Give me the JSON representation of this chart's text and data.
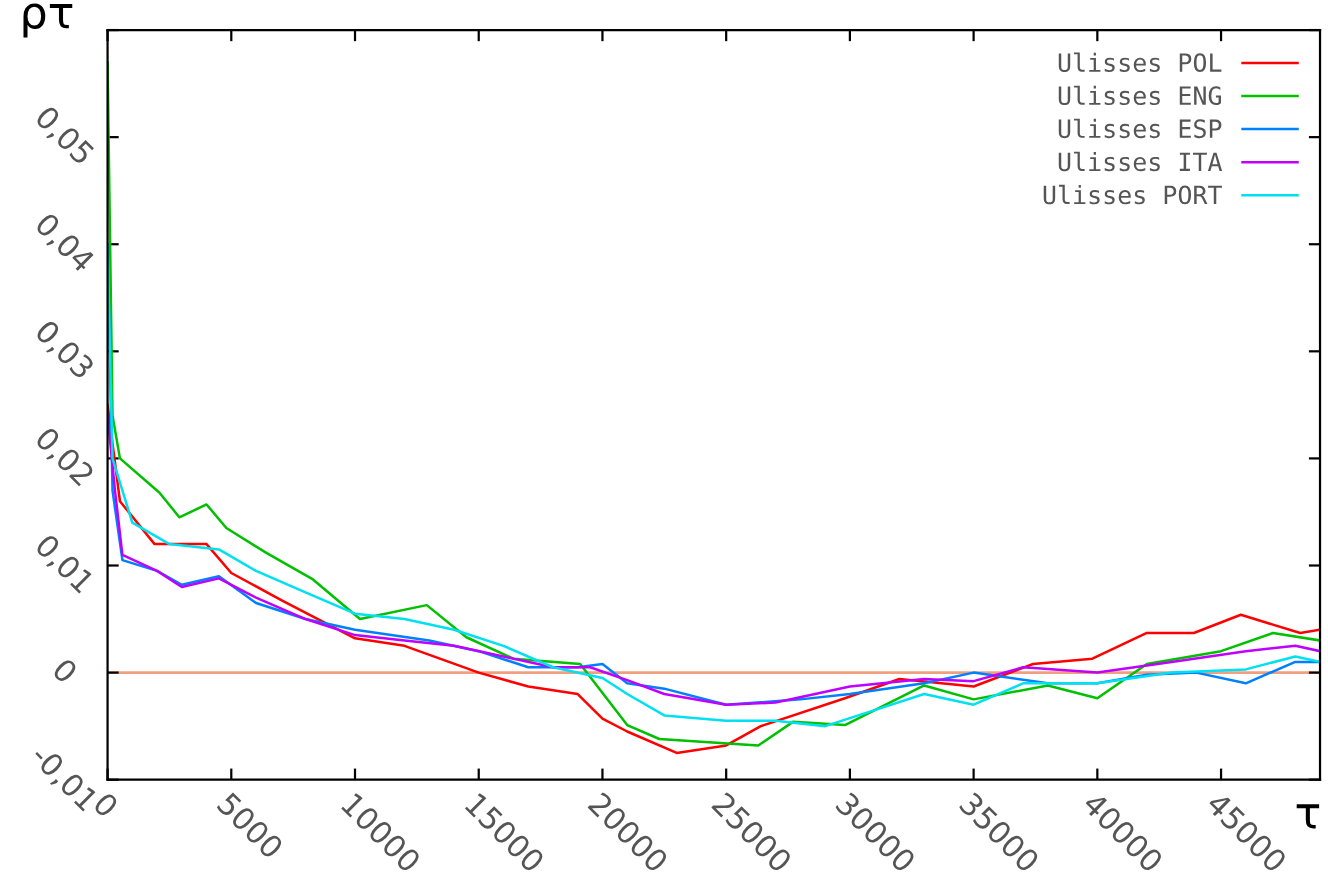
{
  "chart_data": {
    "type": "line",
    "xlabel": "τ",
    "ylabel": "ρτ",
    "xlim": [
      0,
      49000
    ],
    "xticks": [
      0,
      5000,
      10000,
      15000,
      20000,
      25000,
      30000,
      35000,
      40000,
      45000
    ],
    "ylim": [
      -0.01,
      0.06
    ],
    "yticks": [
      {
        "value": -0.01,
        "label": "-0,01"
      },
      {
        "value": 0,
        "label": "0"
      },
      {
        "value": 0.01,
        "label": "0,01"
      },
      {
        "value": 0.02,
        "label": "0,02"
      },
      {
        "value": 0.03,
        "label": "0,03"
      },
      {
        "value": 0.04,
        "label": "0,04"
      },
      {
        "value": 0.05,
        "label": "0,05"
      },
      {
        "value": 0.06,
        "label": null
      }
    ],
    "grid": false,
    "legend": "top right",
    "marker": "none",
    "line_style": "solid",
    "ref_lines": [
      {
        "axis": "y",
        "value": 0,
        "label": null,
        "color": "#f0a080"
      }
    ],
    "series": [
      {
        "name": "Ulisses POL",
        "color": "#ff0000",
        "x": [
          0,
          500,
          1900,
          4000,
          5000,
          7000,
          10000,
          12000,
          15000,
          17000,
          19000,
          20000,
          21000,
          23000,
          25000,
          26400,
          29800,
          32000,
          35000,
          37400,
          39800,
          42000,
          43900,
          45800,
          48200,
          49000
        ],
        "values": [
          0.025,
          0.016,
          0.012,
          0.012,
          0.0093,
          0.0068,
          0.0032,
          0.0025,
          0.0,
          -0.0013,
          -0.002,
          -0.0043,
          -0.0055,
          -0.0075,
          -0.0068,
          -0.005,
          -0.0024,
          -0.0006,
          -0.0013,
          0.0008,
          0.0013,
          0.0037,
          0.0037,
          0.0054,
          0.0037,
          0.004
        ]
      },
      {
        "name": "Ulisses ENG",
        "color": "#00c000",
        "x": [
          0,
          200,
          500,
          2100,
          2900,
          4000,
          4800,
          6400,
          8300,
          10200,
          12900,
          14500,
          16400,
          19100,
          21000,
          22300,
          26300,
          27700,
          29800,
          33000,
          35000,
          38000,
          40000,
          42000,
          45000,
          47100,
          49000
        ],
        "values": [
          0.057,
          0.024,
          0.02,
          0.0168,
          0.0145,
          0.0157,
          0.0135,
          0.0112,
          0.0087,
          0.005,
          0.0063,
          0.0033,
          0.0013,
          0.0008,
          -0.0049,
          -0.0062,
          -0.0068,
          -0.0046,
          -0.0049,
          -0.0012,
          -0.0025,
          -0.0012,
          -0.0024,
          0.0008,
          0.002,
          0.0037,
          0.003
        ]
      },
      {
        "name": "Ulisses ESP",
        "color": "#0080ff",
        "x": [
          0,
          200,
          600,
          2000,
          3000,
          4500,
          6000,
          8000,
          10000,
          13000,
          15000,
          17000,
          19000,
          20000,
          21000,
          22500,
          25000,
          28000,
          30000,
          33000,
          35000,
          38000,
          40000,
          42000,
          44000,
          46000,
          48000,
          49000
        ],
        "values": [
          0.04,
          0.017,
          0.0105,
          0.0095,
          0.0082,
          0.009,
          0.0065,
          0.005,
          0.004,
          0.003,
          0.002,
          0.0005,
          0.0005,
          0.0008,
          -0.001,
          -0.0015,
          -0.003,
          -0.0025,
          -0.002,
          -0.001,
          0.0,
          -0.001,
          -0.001,
          -0.0002,
          0.0,
          -0.001,
          0.001,
          0.001
        ]
      },
      {
        "name": "Ulisses ITA",
        "color": "#c000ff",
        "x": [
          0,
          300,
          600,
          2000,
          3000,
          4500,
          6000,
          8000,
          10000,
          12000,
          14000,
          16000,
          18000,
          19500,
          21000,
          22500,
          25000,
          27000,
          30000,
          33000,
          35000,
          37000,
          40000,
          43000,
          46000,
          48000,
          49000
        ],
        "values": [
          0.024,
          0.017,
          0.011,
          0.0095,
          0.008,
          0.0088,
          0.007,
          0.005,
          0.0035,
          0.003,
          0.0025,
          0.0015,
          0.0005,
          0.0005,
          -0.0007,
          -0.002,
          -0.003,
          -0.0028,
          -0.0013,
          -0.0006,
          -0.0008,
          0.0005,
          0.0,
          0.001,
          0.002,
          0.0025,
          0.002
        ]
      },
      {
        "name": "Ulisses PORT",
        "color": "#00e0f0",
        "x": [
          0,
          200,
          1000,
          2500,
          4500,
          6000,
          8000,
          10000,
          12000,
          14000,
          16000,
          18000,
          20000,
          21000,
          22500,
          25000,
          27000,
          29000,
          31000,
          33000,
          35000,
          37000,
          40000,
          43000,
          46000,
          48000,
          49000
        ],
        "values": [
          0.04,
          0.02,
          0.014,
          0.012,
          0.0115,
          0.0095,
          0.0075,
          0.0055,
          0.005,
          0.004,
          0.0025,
          0.0005,
          -0.0005,
          -0.002,
          -0.004,
          -0.0045,
          -0.0045,
          -0.005,
          -0.0035,
          -0.002,
          -0.003,
          -0.001,
          -0.001,
          0.0,
          0.0003,
          0.0015,
          0.001
        ]
      }
    ]
  }
}
